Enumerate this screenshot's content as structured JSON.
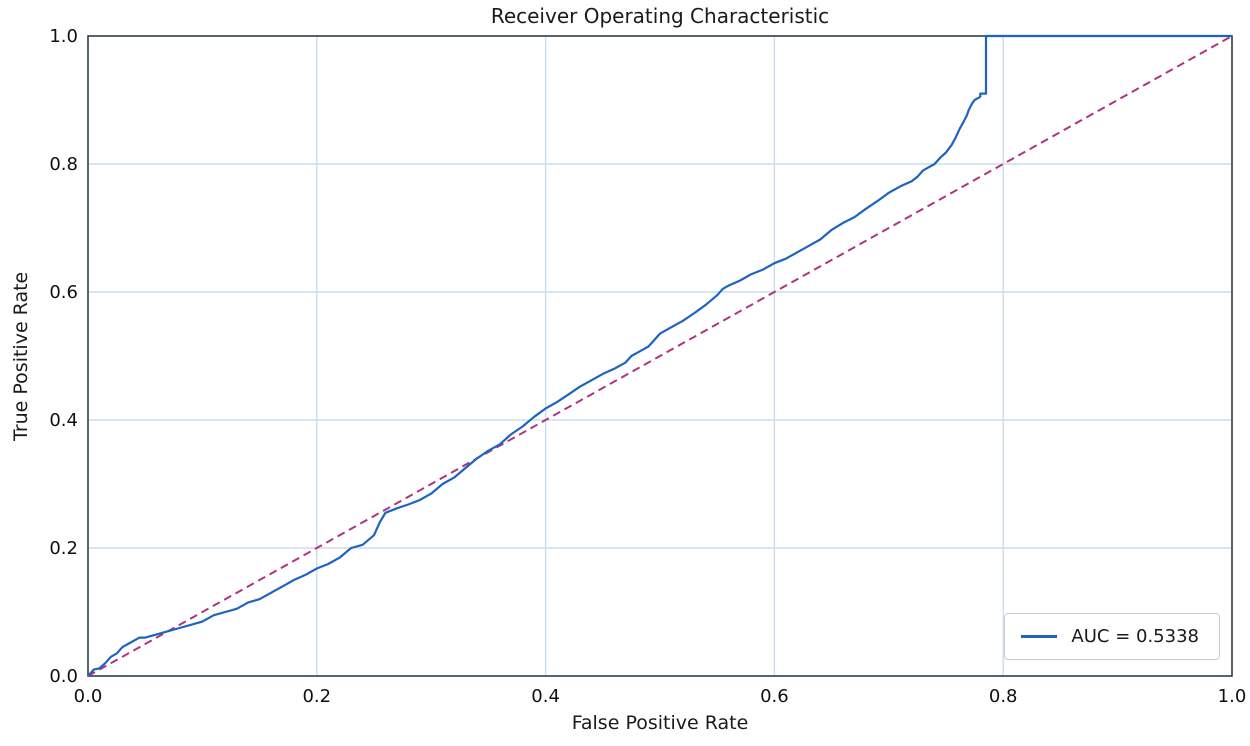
{
  "chart": {
    "title": "Receiver Operating Characteristic",
    "xlabel": "False Positive Rate",
    "ylabel": "True Positive Rate",
    "legend": {
      "auc_label": "AUC = 0.5338"
    }
  },
  "colors": {
    "curve": "#1e63c0",
    "diagonal": "#b0337e",
    "grid": "#ccdded",
    "spine": "#2f3e46",
    "text": "#111111",
    "legend_border": "#cccccc",
    "background": "#ffffff"
  },
  "chart_data": {
    "type": "line",
    "title": "Receiver Operating Characteristic",
    "xlabel": "False Positive Rate",
    "ylabel": "True Positive Rate",
    "xlim": [
      0.0,
      1.0
    ],
    "ylim": [
      0.0,
      1.0
    ],
    "xticks": [
      0.0,
      0.2,
      0.4,
      0.6,
      0.8,
      1.0
    ],
    "yticks": [
      0.0,
      0.2,
      0.4,
      0.6,
      0.8,
      1.0
    ],
    "xticklabels": [
      "0.0",
      "0.2",
      "0.4",
      "0.6",
      "0.8",
      "1.0"
    ],
    "yticklabels": [
      "0.0",
      "0.2",
      "0.4",
      "0.6",
      "0.8",
      "1.0"
    ],
    "grid": true,
    "legend_position": "lower right",
    "auc": 0.5338,
    "series": [
      {
        "name": "AUC = 0.5338",
        "id": "roc-curve",
        "color": "#1e63c0",
        "dash": null,
        "width": 2.2,
        "points": [
          [
            0.0,
            0.0
          ],
          [
            0.005,
            0.01
          ],
          [
            0.01,
            0.012
          ],
          [
            0.015,
            0.02
          ],
          [
            0.02,
            0.03
          ],
          [
            0.025,
            0.035
          ],
          [
            0.03,
            0.045
          ],
          [
            0.035,
            0.05
          ],
          [
            0.045,
            0.06
          ],
          [
            0.05,
            0.06
          ],
          [
            0.06,
            0.065
          ],
          [
            0.07,
            0.07
          ],
          [
            0.08,
            0.075
          ],
          [
            0.09,
            0.08
          ],
          [
            0.1,
            0.085
          ],
          [
            0.11,
            0.095
          ],
          [
            0.12,
            0.1
          ],
          [
            0.13,
            0.105
          ],
          [
            0.14,
            0.115
          ],
          [
            0.15,
            0.12
          ],
          [
            0.16,
            0.13
          ],
          [
            0.17,
            0.14
          ],
          [
            0.18,
            0.15
          ],
          [
            0.19,
            0.158
          ],
          [
            0.2,
            0.168
          ],
          [
            0.21,
            0.175
          ],
          [
            0.22,
            0.185
          ],
          [
            0.23,
            0.2
          ],
          [
            0.24,
            0.205
          ],
          [
            0.25,
            0.22
          ],
          [
            0.255,
            0.24
          ],
          [
            0.26,
            0.255
          ],
          [
            0.27,
            0.262
          ],
          [
            0.28,
            0.268
          ],
          [
            0.29,
            0.275
          ],
          [
            0.3,
            0.285
          ],
          [
            0.31,
            0.3
          ],
          [
            0.32,
            0.31
          ],
          [
            0.33,
            0.325
          ],
          [
            0.34,
            0.34
          ],
          [
            0.35,
            0.352
          ],
          [
            0.36,
            0.362
          ],
          [
            0.37,
            0.378
          ],
          [
            0.38,
            0.39
          ],
          [
            0.39,
            0.405
          ],
          [
            0.4,
            0.418
          ],
          [
            0.41,
            0.428
          ],
          [
            0.42,
            0.44
          ],
          [
            0.43,
            0.452
          ],
          [
            0.44,
            0.462
          ],
          [
            0.45,
            0.472
          ],
          [
            0.46,
            0.48
          ],
          [
            0.47,
            0.49
          ],
          [
            0.475,
            0.5
          ],
          [
            0.48,
            0.505
          ],
          [
            0.49,
            0.515
          ],
          [
            0.5,
            0.535
          ],
          [
            0.51,
            0.545
          ],
          [
            0.52,
            0.555
          ],
          [
            0.53,
            0.567
          ],
          [
            0.54,
            0.58
          ],
          [
            0.55,
            0.595
          ],
          [
            0.555,
            0.605
          ],
          [
            0.56,
            0.61
          ],
          [
            0.57,
            0.618
          ],
          [
            0.58,
            0.628
          ],
          [
            0.59,
            0.635
          ],
          [
            0.6,
            0.645
          ],
          [
            0.61,
            0.652
          ],
          [
            0.62,
            0.662
          ],
          [
            0.63,
            0.672
          ],
          [
            0.64,
            0.682
          ],
          [
            0.65,
            0.697
          ],
          [
            0.66,
            0.708
          ],
          [
            0.67,
            0.717
          ],
          [
            0.68,
            0.73
          ],
          [
            0.69,
            0.742
          ],
          [
            0.7,
            0.755
          ],
          [
            0.71,
            0.765
          ],
          [
            0.72,
            0.773
          ],
          [
            0.725,
            0.78
          ],
          [
            0.73,
            0.79
          ],
          [
            0.735,
            0.795
          ],
          [
            0.74,
            0.8
          ],
          [
            0.745,
            0.81
          ],
          [
            0.75,
            0.818
          ],
          [
            0.755,
            0.83
          ],
          [
            0.758,
            0.84
          ],
          [
            0.762,
            0.855
          ],
          [
            0.765,
            0.865
          ],
          [
            0.768,
            0.875
          ],
          [
            0.77,
            0.885
          ],
          [
            0.773,
            0.895
          ],
          [
            0.775,
            0.9
          ],
          [
            0.78,
            0.905
          ],
          [
            0.78,
            0.91
          ],
          [
            0.785,
            0.91
          ],
          [
            0.785,
            1.0
          ],
          [
            1.0,
            1.0
          ]
        ]
      },
      {
        "name": "chance-diagonal",
        "id": "chance-diagonal",
        "color": "#b0337e",
        "dash": "8 5",
        "width": 2,
        "points": [
          [
            0.0,
            0.0
          ],
          [
            1.0,
            1.0
          ]
        ]
      }
    ]
  }
}
